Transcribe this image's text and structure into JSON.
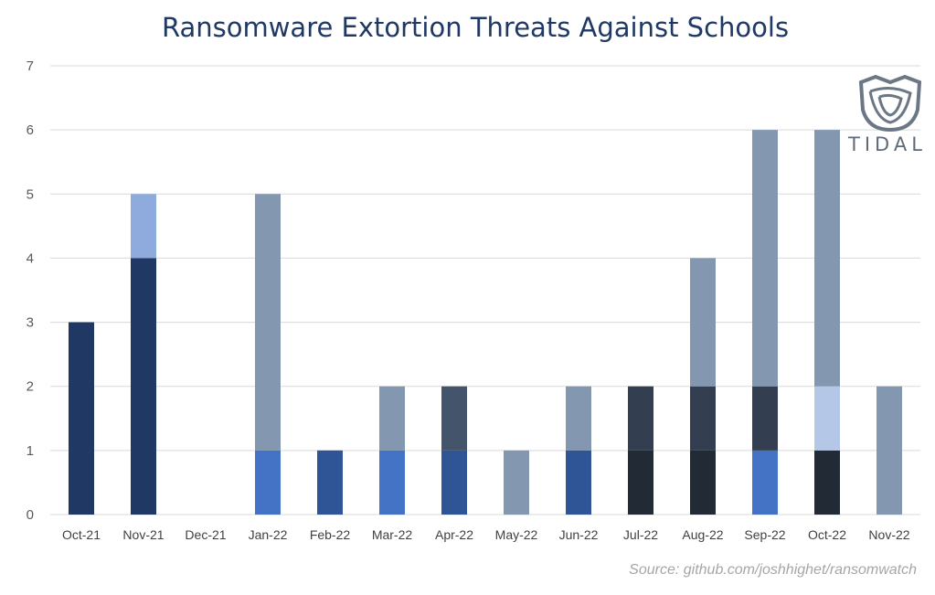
{
  "brand": {
    "logo_word": "TIDAL",
    "logo_icon": "tidal-shield-logo"
  },
  "source": "Source: github.com/joshhighet/ransomwatch",
  "chart_data": {
    "type": "bar",
    "stacked": true,
    "title": "Ransomware Extortion Threats Against Schools",
    "xlabel": "",
    "ylabel": "",
    "ylim": [
      0,
      7
    ],
    "yticks": [
      0,
      1,
      2,
      3,
      4,
      5,
      6,
      7
    ],
    "grid": true,
    "legend": "none",
    "categories": [
      "Oct-21",
      "Nov-21",
      "Dec-21",
      "Jan-22",
      "Feb-22",
      "Mar-22",
      "Apr-22",
      "May-22",
      "Jun-22",
      "Jul-22",
      "Aug-22",
      "Sep-22",
      "Oct-22",
      "Nov-22"
    ],
    "series": [
      {
        "color": "#1f3864",
        "values": [
          3,
          4,
          0,
          0,
          0,
          0,
          0,
          0,
          0,
          0,
          0,
          0,
          0,
          0
        ]
      },
      {
        "color": "#4472c4",
        "values": [
          0,
          0,
          0,
          1,
          0,
          1,
          0,
          0,
          0,
          0,
          0,
          1,
          0,
          0
        ]
      },
      {
        "color": "#2f5597",
        "values": [
          0,
          0,
          0,
          0,
          1,
          0,
          1,
          0,
          1,
          0,
          0,
          0,
          0,
          0
        ]
      },
      {
        "color": "#222a35",
        "values": [
          0,
          0,
          0,
          0,
          0,
          0,
          0,
          0,
          0,
          1,
          1,
          0,
          1,
          0
        ]
      },
      {
        "color": "#44546a",
        "values": [
          0,
          0,
          0,
          0,
          0,
          0,
          1,
          0,
          0,
          0,
          0,
          0,
          0,
          0
        ]
      },
      {
        "color": "#333f50",
        "values": [
          0,
          0,
          0,
          0,
          0,
          0,
          0,
          0,
          0,
          1,
          1,
          1,
          0,
          0
        ]
      },
      {
        "color": "#b4c7e7",
        "values": [
          0,
          0,
          0,
          0,
          0,
          0,
          0,
          0,
          0,
          0,
          0,
          0,
          1,
          0
        ]
      },
      {
        "color": "#8faadc",
        "values": [
          0,
          1,
          0,
          0,
          0,
          0,
          0,
          0,
          0,
          0,
          0,
          0,
          0,
          0
        ]
      },
      {
        "color": "#8497b0",
        "values": [
          0,
          0,
          0,
          4,
          0,
          1,
          0,
          1,
          1,
          0,
          2,
          4,
          4,
          2
        ]
      }
    ]
  }
}
